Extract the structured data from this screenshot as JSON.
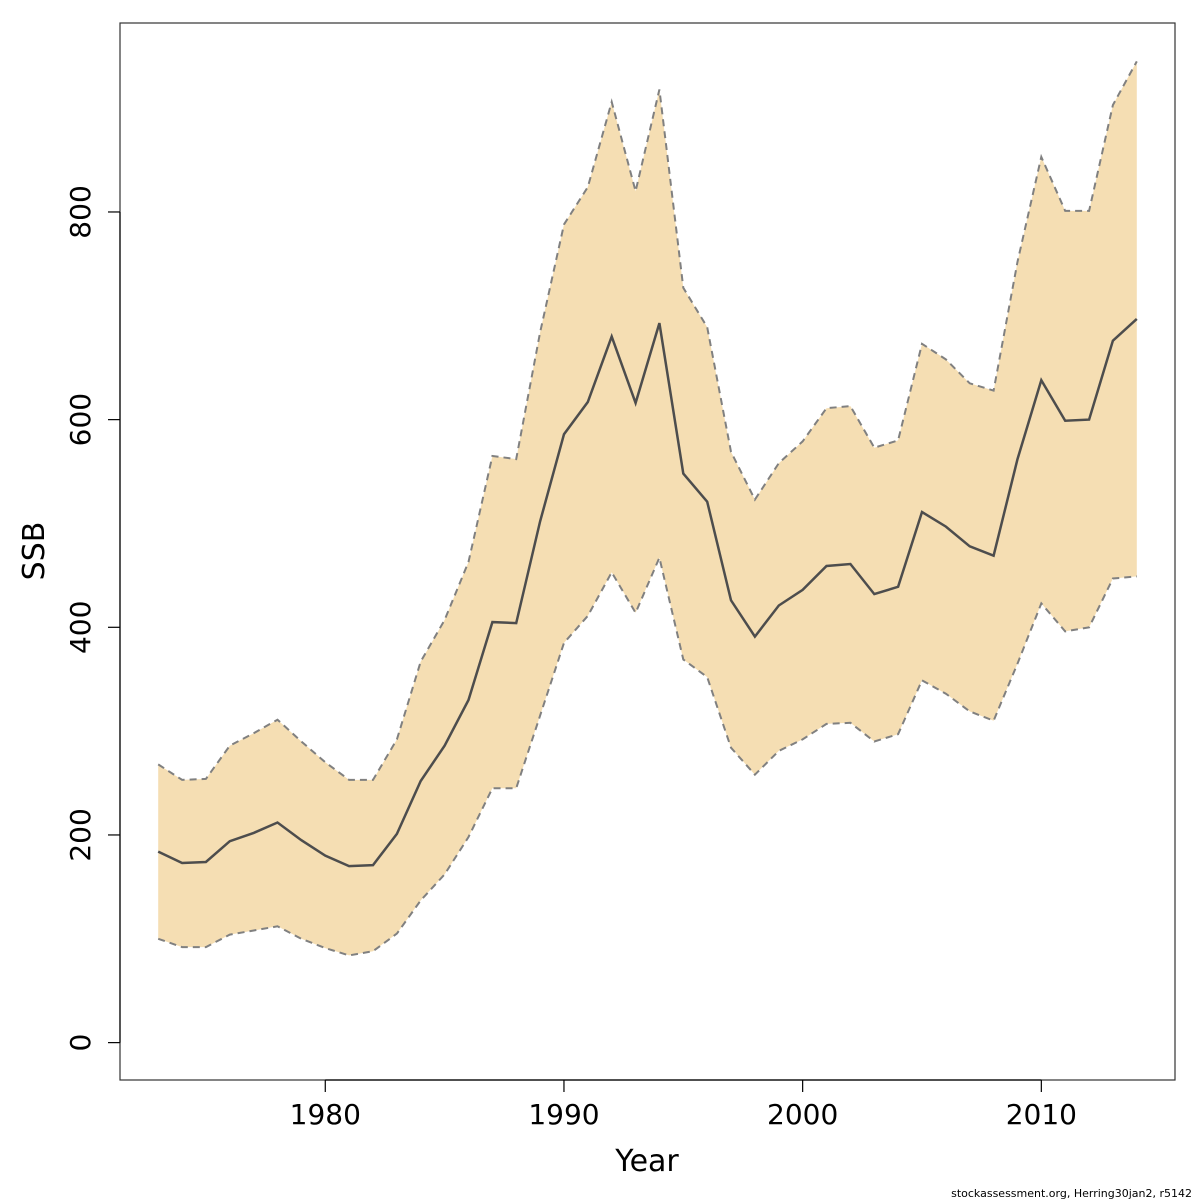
{
  "chart_data": {
    "type": "line",
    "title": "",
    "xlabel": "Year",
    "ylabel": "SSB",
    "xlim": [
      1971.4,
      2015.6
    ],
    "ylim": [
      -36,
      982
    ],
    "x_ticks": [
      1980,
      1990,
      2000,
      2010
    ],
    "y_ticks": [
      0,
      200,
      400,
      600,
      800
    ],
    "years": [
      1973,
      1974,
      1975,
      1976,
      1977,
      1978,
      1979,
      1980,
      1981,
      1982,
      1983,
      1984,
      1985,
      1986,
      1987,
      1988,
      1989,
      1990,
      1991,
      1992,
      1993,
      1994,
      1995,
      1996,
      1997,
      1998,
      1999,
      2000,
      2001,
      2002,
      2003,
      2004,
      2005,
      2006,
      2007,
      2008,
      2009,
      2010,
      2011,
      2012,
      2013,
      2014
    ],
    "series": [
      {
        "name": "SSB estimate",
        "values": [
          184,
          173,
          174,
          194,
          202,
          212,
          195,
          180,
          170,
          171,
          201,
          252,
          286,
          330,
          405,
          404,
          502,
          586,
          617,
          680,
          616,
          693,
          548,
          521,
          426,
          391,
          421,
          436,
          459,
          461,
          432,
          439,
          511,
          497,
          478,
          469,
          562,
          638,
          599,
          600,
          676,
          697
        ]
      },
      {
        "name": "Lower bound",
        "values": [
          100,
          92,
          92,
          104,
          108,
          112,
          100,
          91,
          84,
          88,
          105,
          137,
          162,
          198,
          245,
          245,
          315,
          385,
          411,
          453,
          414,
          467,
          369,
          352,
          284,
          258,
          281,
          292,
          307,
          308,
          290,
          297,
          349,
          336,
          319,
          310,
          365,
          423,
          396,
          400,
          447,
          449
        ]
      },
      {
        "name": "Upper bound",
        "values": [
          268,
          253,
          254,
          286,
          298,
          311,
          290,
          270,
          253,
          253,
          292,
          367,
          407,
          463,
          565,
          562,
          684,
          788,
          824,
          906,
          820,
          918,
          727,
          689,
          569,
          523,
          558,
          579,
          611,
          613,
          573,
          580,
          673,
          658,
          635,
          628,
          752,
          853,
          801,
          801,
          903,
          945
        ]
      }
    ],
    "colors": {
      "band": "#f5deb3",
      "line": "#4d4d4d",
      "bound": "#808080",
      "frame": "#333333"
    }
  },
  "footer": {
    "credit": "stockassessment.org, Herring30jan2, r5142"
  }
}
